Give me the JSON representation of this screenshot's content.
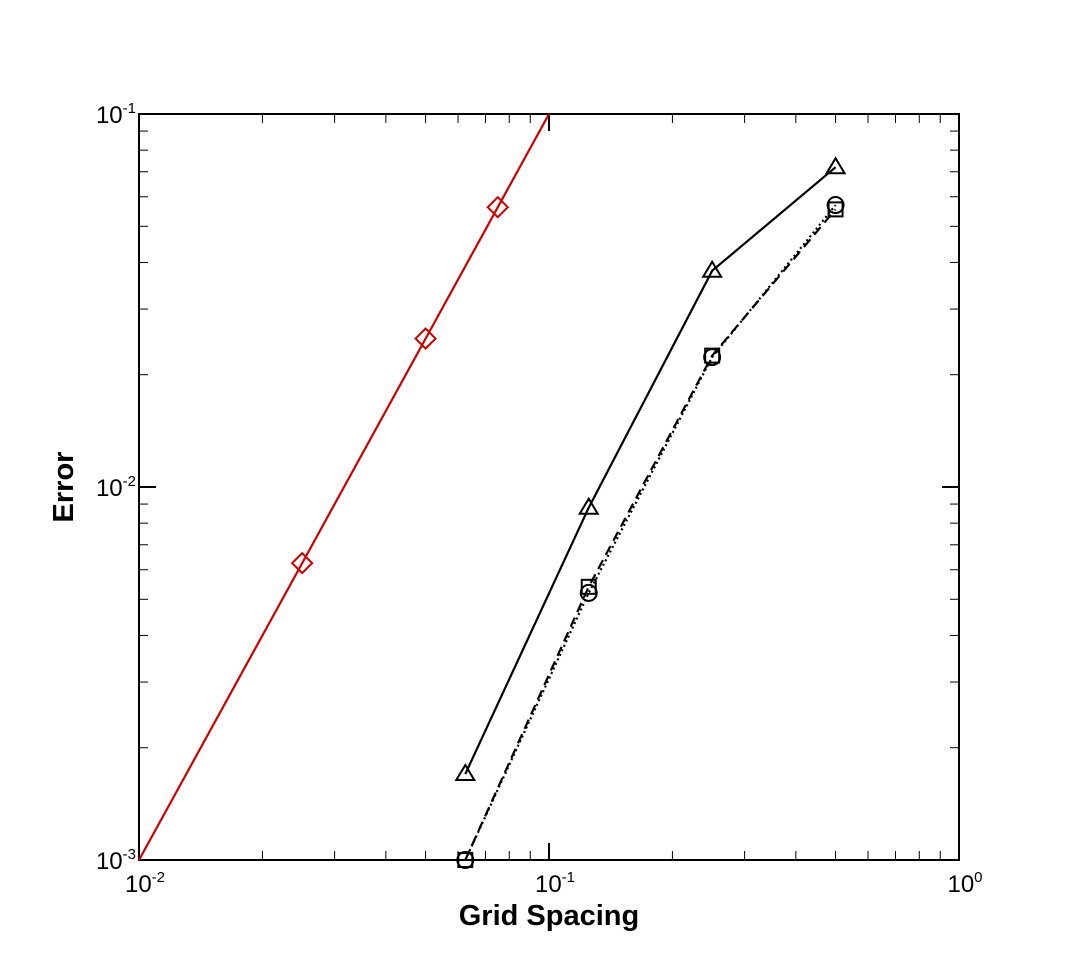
{
  "chart_data": {
    "type": "line",
    "title": "",
    "xlabel": "Grid Spacing",
    "ylabel": "Error",
    "xscale": "log",
    "yscale": "log",
    "xlim": [
      0.01,
      1
    ],
    "ylim": [
      0.001,
      0.1
    ],
    "grid": false,
    "legend": "none",
    "x_ticks": [
      {
        "base": "10",
        "exp": "-2",
        "value": 0.01
      },
      {
        "base": "10",
        "exp": "-1",
        "value": 0.1
      },
      {
        "base": "10",
        "exp": "0",
        "value": 1
      }
    ],
    "y_ticks": [
      {
        "base": "10",
        "exp": "-3",
        "value": 0.001
      },
      {
        "base": "10",
        "exp": "-2",
        "value": 0.01
      },
      {
        "base": "10",
        "exp": "-1",
        "value": 0.1
      }
    ],
    "series": [
      {
        "marker": "diamond",
        "line": "solid",
        "color": "#cc0000",
        "x": [
          0.01,
          0.025,
          0.05,
          0.075,
          0.1
        ],
        "y": [
          0.001,
          0.00625,
          0.025,
          0.05625,
          0.1
        ],
        "marked": [
          false,
          true,
          true,
          true,
          false
        ]
      },
      {
        "marker": "triangle",
        "line": "solid",
        "color": "#000000",
        "x": [
          0.0625,
          0.125,
          0.25,
          0.5
        ],
        "y": [
          0.0017,
          0.0088,
          0.038,
          0.072
        ]
      },
      {
        "marker": "circle",
        "line": "dotted",
        "color": "#000000",
        "x": [
          0.0625,
          0.125,
          0.25,
          0.5
        ],
        "y": [
          0.001,
          0.0052,
          0.0223,
          0.057
        ]
      },
      {
        "marker": "square",
        "line": "dashed",
        "color": "#000000",
        "x": [
          0.0625,
          0.125,
          0.25,
          0.5
        ],
        "y": [
          0.001,
          0.0054,
          0.0225,
          0.0555
        ]
      }
    ]
  }
}
